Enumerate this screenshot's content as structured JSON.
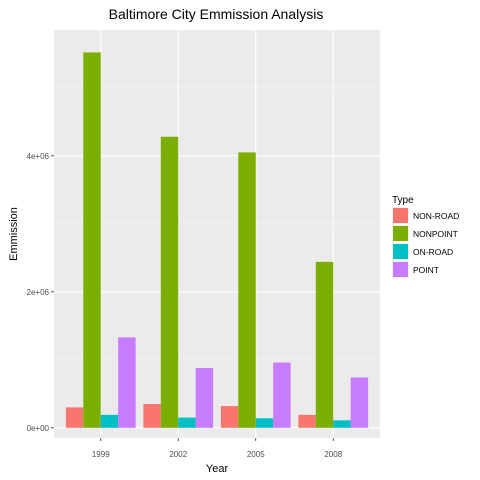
{
  "chart_data": {
    "type": "bar",
    "title": "Baltimore City Emmission Analysis",
    "xlabel": "Year",
    "ylabel": "Emmission",
    "categories": [
      "1999",
      "2002",
      "2005",
      "2008"
    ],
    "ylim": [
      -150000,
      5850000
    ],
    "yticks": [
      0,
      2000000,
      4000000
    ],
    "ytick_labels": [
      "0e+00",
      "2e+06",
      "4e+06"
    ],
    "grid": true,
    "legend_title": "Type",
    "legend_position": "right",
    "series": [
      {
        "name": "NON-ROAD",
        "color": "#F8766D",
        "values": [
          300000,
          350000,
          320000,
          190000
        ]
      },
      {
        "name": "NONPOINT",
        "color": "#7CAE00",
        "values": [
          5520000,
          4280000,
          4050000,
          2440000
        ]
      },
      {
        "name": "ON-ROAD",
        "color": "#00BFC4",
        "values": [
          190000,
          150000,
          140000,
          110000
        ]
      },
      {
        "name": "POINT",
        "color": "#C77CFF",
        "values": [
          1330000,
          880000,
          960000,
          740000
        ]
      }
    ]
  }
}
